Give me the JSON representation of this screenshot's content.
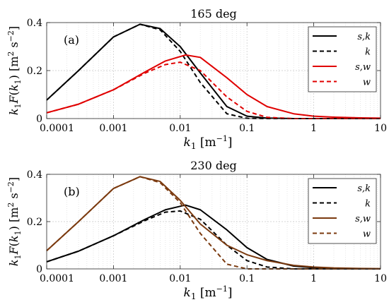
{
  "chart_data": [
    {
      "type": "line",
      "title": "165 deg",
      "panel_label": "(a)",
      "xscale": "log",
      "xlim": [
        0.0001,
        10
      ],
      "ylim": [
        0,
        0.4
      ],
      "xticks": [
        0.0001,
        0.001,
        0.01,
        0.1,
        1,
        10
      ],
      "xtick_labels": [
        "0.0001",
        "0.001",
        "0.01",
        "0.1",
        "1",
        "10"
      ],
      "yticks": [
        0,
        0.2,
        0.4
      ],
      "ytick_labels": [
        "0",
        "0.2",
        "0.4"
      ],
      "xlabel": "k1 [m^-1]",
      "ylabel": "k1F(k1) [m^2 s^-2]",
      "grid": true,
      "legend_position": "top-right",
      "series": [
        {
          "name": "s,k",
          "color": "#000000",
          "dash": "solid",
          "x": [
            0.0001,
            0.0003,
            0.001,
            0.0025,
            0.005,
            0.01,
            0.02,
            0.05,
            0.1,
            0.2,
            0.5,
            1,
            10
          ],
          "y": [
            0.077,
            0.2,
            0.34,
            0.393,
            0.375,
            0.3,
            0.19,
            0.05,
            0.01,
            0.002,
            0.0,
            0.0,
            0.0
          ]
        },
        {
          "name": "k",
          "color": "#000000",
          "dash": "dashed",
          "x": [
            0.0001,
            0.0003,
            0.001,
            0.0025,
            0.005,
            0.01,
            0.02,
            0.05,
            0.1,
            0.2,
            0.5,
            1,
            10
          ],
          "y": [
            0.077,
            0.2,
            0.34,
            0.393,
            0.37,
            0.28,
            0.15,
            0.02,
            0.001,
            0.0,
            0.0,
            0.0,
            0.0
          ]
        },
        {
          "name": "s,w",
          "color": "#e00000",
          "dash": "solid",
          "x": [
            0.0001,
            0.0003,
            0.001,
            0.003,
            0.006,
            0.012,
            0.02,
            0.05,
            0.1,
            0.2,
            0.5,
            1,
            2,
            5,
            10
          ],
          "y": [
            0.024,
            0.06,
            0.12,
            0.195,
            0.24,
            0.265,
            0.255,
            0.17,
            0.1,
            0.05,
            0.02,
            0.01,
            0.006,
            0.003,
            0.002
          ]
        },
        {
          "name": "w",
          "color": "#e00000",
          "dash": "dashed",
          "x": [
            0.0001,
            0.0003,
            0.001,
            0.003,
            0.006,
            0.01,
            0.02,
            0.05,
            0.1,
            0.2,
            0.5,
            1,
            10
          ],
          "y": [
            0.024,
            0.06,
            0.12,
            0.19,
            0.225,
            0.235,
            0.2,
            0.09,
            0.03,
            0.005,
            0.0,
            0.0,
            0.0
          ]
        }
      ]
    },
    {
      "type": "line",
      "title": "230 deg",
      "panel_label": "(b)",
      "xscale": "log",
      "xlim": [
        0.0001,
        10
      ],
      "ylim": [
        0,
        0.4
      ],
      "xticks": [
        0.0001,
        0.001,
        0.01,
        0.1,
        1,
        10
      ],
      "xtick_labels": [
        "0.0001",
        "0.001",
        "0.01",
        "0.1",
        "1",
        "10"
      ],
      "yticks": [
        0,
        0.2,
        0.4
      ],
      "ytick_labels": [
        "0",
        "0.2",
        "0.4"
      ],
      "xlabel": "k1 [m^-1]",
      "ylabel": "k1F(k1) [m^2 s^-2]",
      "grid": true,
      "legend_position": "top-right",
      "series": [
        {
          "name": "s,k",
          "color": "#000000",
          "dash": "solid",
          "x": [
            0.0001,
            0.0003,
            0.001,
            0.003,
            0.006,
            0.012,
            0.02,
            0.05,
            0.1,
            0.2,
            0.5,
            1,
            2,
            5,
            10
          ],
          "y": [
            0.03,
            0.075,
            0.14,
            0.21,
            0.25,
            0.27,
            0.25,
            0.165,
            0.09,
            0.04,
            0.012,
            0.005,
            0.002,
            0.0,
            0.0
          ]
        },
        {
          "name": "k",
          "color": "#000000",
          "dash": "dashed",
          "x": [
            0.0001,
            0.0003,
            0.001,
            0.003,
            0.006,
            0.01,
            0.02,
            0.05,
            0.1,
            0.2,
            0.5,
            1,
            10
          ],
          "y": [
            0.03,
            0.075,
            0.14,
            0.205,
            0.24,
            0.245,
            0.21,
            0.1,
            0.035,
            0.008,
            0.0,
            0.0,
            0.0
          ]
        },
        {
          "name": "s,w",
          "color": "#7b3a0f",
          "dash": "solid",
          "x": [
            0.0001,
            0.0003,
            0.001,
            0.0025,
            0.005,
            0.01,
            0.02,
            0.05,
            0.1,
            0.2,
            0.5,
            1,
            2,
            5,
            10
          ],
          "y": [
            0.077,
            0.2,
            0.34,
            0.39,
            0.37,
            0.29,
            0.19,
            0.1,
            0.06,
            0.035,
            0.015,
            0.008,
            0.004,
            0.002,
            0.001
          ]
        },
        {
          "name": "w",
          "color": "#7b3a0f",
          "dash": "dashed",
          "x": [
            0.0001,
            0.0003,
            0.001,
            0.0025,
            0.005,
            0.01,
            0.02,
            0.05,
            0.1,
            0.2,
            0.5,
            1,
            10
          ],
          "y": [
            0.077,
            0.2,
            0.34,
            0.39,
            0.365,
            0.28,
            0.15,
            0.02,
            0.0,
            0.0,
            0.0,
            0.0,
            0.0
          ]
        }
      ]
    }
  ]
}
